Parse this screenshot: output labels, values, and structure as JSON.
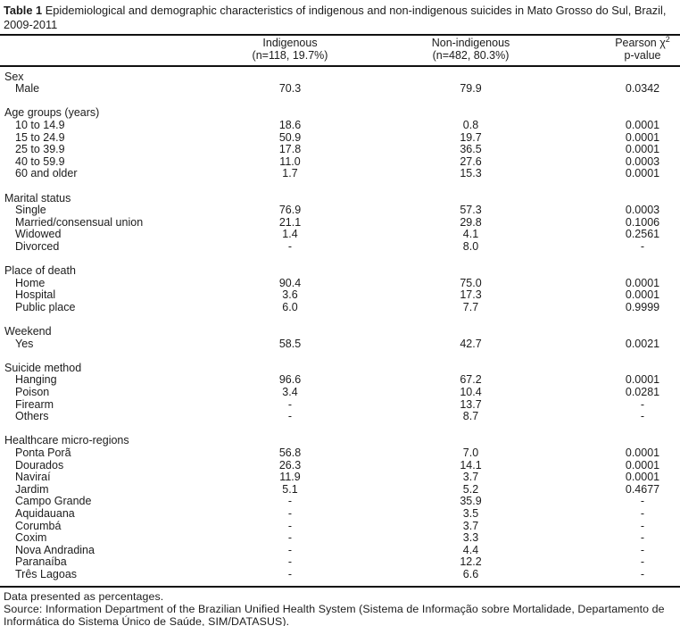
{
  "colors": {
    "ink": "#1c1c1c",
    "rule": "#111111",
    "background": "#ffffff"
  },
  "title": {
    "label": "Table 1",
    "text": "Epidemiological and demographic characteristics of indigenous and non-indigenous suicides in Mato Grosso do Sul, Brazil, 2009-2011"
  },
  "table": {
    "header": {
      "col1": "",
      "col2_line1": "Indigenous",
      "col2_line2": "(n=118, 19.7%)",
      "col3_line1": "Non-indigenous",
      "col3_line2": "(n=482, 80.3%)",
      "col4_line1": "Pearson χ",
      "col4_sup": "2",
      "col4_line2": "p-value"
    },
    "groups": [
      {
        "label": "Sex",
        "rows": [
          {
            "label": "Male",
            "indigenous": "70.3",
            "non_indigenous": "79.9",
            "p_value": "0.0342"
          }
        ]
      },
      {
        "label": "Age groups (years)",
        "rows": [
          {
            "label": "10 to 14.9",
            "indigenous": "18.6",
            "non_indigenous": "0.8",
            "p_value": "0.0001"
          },
          {
            "label": "15 to 24.9",
            "indigenous": "50.9",
            "non_indigenous": "19.7",
            "p_value": "0.0001"
          },
          {
            "label": "25 to 39.9",
            "indigenous": "17.8",
            "non_indigenous": "36.5",
            "p_value": "0.0001"
          },
          {
            "label": "40 to 59.9",
            "indigenous": "11.0",
            "non_indigenous": "27.6",
            "p_value": "0.0003"
          },
          {
            "label": "60 and older",
            "indigenous": "1.7",
            "non_indigenous": "15.3",
            "p_value": "0.0001"
          }
        ]
      },
      {
        "label": "Marital status",
        "rows": [
          {
            "label": "Single",
            "indigenous": "76.9",
            "non_indigenous": "57.3",
            "p_value": "0.0003"
          },
          {
            "label": "Married/consensual union",
            "indigenous": "21.1",
            "non_indigenous": "29.8",
            "p_value": "0.1006"
          },
          {
            "label": "Widowed",
            "indigenous": "1.4",
            "non_indigenous": "4.1",
            "p_value": "0.2561"
          },
          {
            "label": "Divorced",
            "indigenous": "-",
            "non_indigenous": "8.0",
            "p_value": "-"
          }
        ]
      },
      {
        "label": "Place of death",
        "rows": [
          {
            "label": "Home",
            "indigenous": "90.4",
            "non_indigenous": "75.0",
            "p_value": "0.0001"
          },
          {
            "label": "Hospital",
            "indigenous": "3.6",
            "non_indigenous": "17.3",
            "p_value": "0.0001"
          },
          {
            "label": "Public place",
            "indigenous": "6.0",
            "non_indigenous": "7.7",
            "p_value": "0.9999"
          }
        ]
      },
      {
        "label": "Weekend",
        "rows": [
          {
            "label": "Yes",
            "indigenous": "58.5",
            "non_indigenous": "42.7",
            "p_value": "0.0021"
          }
        ]
      },
      {
        "label": "Suicide method",
        "rows": [
          {
            "label": "Hanging",
            "indigenous": "96.6",
            "non_indigenous": "67.2",
            "p_value": "0.0001"
          },
          {
            "label": "Poison",
            "indigenous": "3.4",
            "non_indigenous": "10.4",
            "p_value": "0.0281"
          },
          {
            "label": "Firearm",
            "indigenous": "-",
            "non_indigenous": "13.7",
            "p_value": "-"
          },
          {
            "label": "Others",
            "indigenous": "-",
            "non_indigenous": "8.7",
            "p_value": "-"
          }
        ]
      },
      {
        "label": "Healthcare micro-regions",
        "rows": [
          {
            "label": "Ponta Porã",
            "indigenous": "56.8",
            "non_indigenous": "7.0",
            "p_value": "0.0001"
          },
          {
            "label": "Dourados",
            "indigenous": "26.3",
            "non_indigenous": "14.1",
            "p_value": "0.0001"
          },
          {
            "label": "Naviraí",
            "indigenous": "11.9",
            "non_indigenous": "3.7",
            "p_value": "0.0001"
          },
          {
            "label": "Jardim",
            "indigenous": "5.1",
            "non_indigenous": "5.2",
            "p_value": "0.4677"
          },
          {
            "label": "Campo Grande",
            "indigenous": "-",
            "non_indigenous": "35.9",
            "p_value": "-"
          },
          {
            "label": "Aquidauana",
            "indigenous": "-",
            "non_indigenous": "3.5",
            "p_value": "-"
          },
          {
            "label": "Corumbá",
            "indigenous": "-",
            "non_indigenous": "3.7",
            "p_value": "-"
          },
          {
            "label": "Coxim",
            "indigenous": "-",
            "non_indigenous": "3.3",
            "p_value": "-"
          },
          {
            "label": "Nova Andradina",
            "indigenous": "-",
            "non_indigenous": "4.4",
            "p_value": "-"
          },
          {
            "label": "Paranaíba",
            "indigenous": "-",
            "non_indigenous": "12.2",
            "p_value": "-"
          },
          {
            "label": "Três Lagoas",
            "indigenous": "-",
            "non_indigenous": "6.6",
            "p_value": "-"
          }
        ]
      }
    ]
  },
  "footnotes": {
    "line1": "Data presented as percentages.",
    "line2": "Source: Information Department of the Brazilian Unified Health System (Sistema de Informação sobre Mortalidade, Departamento de Informática do Sistema Único de Saúde, SIM/DATASUS)."
  }
}
